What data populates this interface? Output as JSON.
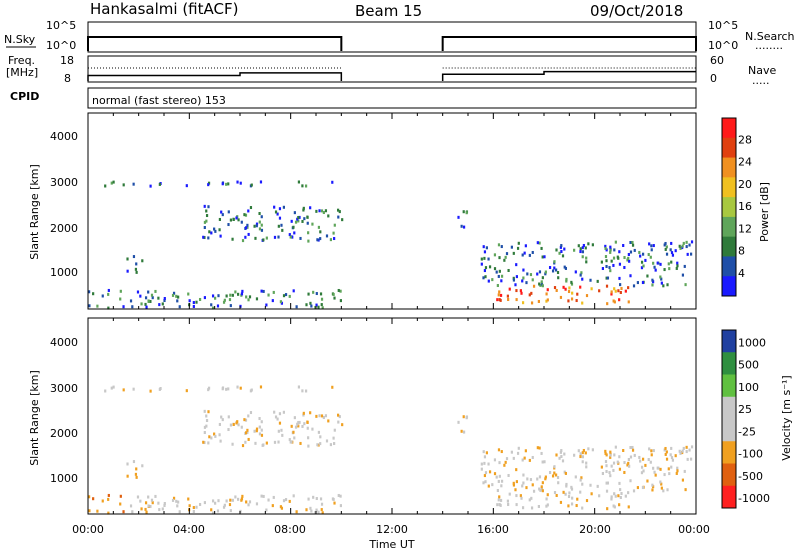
{
  "header": {
    "title_left": "Hankasalmi (fitACF)",
    "title_center": "Beam 15",
    "title_right": "09/Oct/2018"
  },
  "nsky_panel": {
    "left_label": "N.Sky",
    "left_ticks": [
      "10^5",
      "10^0"
    ],
    "right_ticks": [
      "10^5",
      "10^0"
    ],
    "right_label": "N.Search",
    "right_legend": "........"
  },
  "freq_panel": {
    "left_label_line1": "Freq.",
    "left_label_line2": "[MHz]",
    "left_ticks": [
      "18",
      "8"
    ],
    "right_ticks": [
      "60",
      "0"
    ],
    "right_label": "Nave",
    "right_legend": "....."
  },
  "cpid_panel": {
    "left_label": "CPID",
    "program": "normal (fast stereo) 153"
  },
  "x_axis": {
    "ticks": [
      "00:00",
      "04:00",
      "08:00",
      "12:00",
      "16:00",
      "20:00",
      "00:00"
    ],
    "label": "Time UT"
  },
  "power_panel": {
    "ylabel": "Slant Range [km]",
    "y_ticks": [
      "4000",
      "3000",
      "2000",
      "1000"
    ],
    "colorbar_label": "Power [dB]",
    "colorbar_ticks": [
      "28",
      "24",
      "20",
      "16",
      "12",
      "8",
      "4"
    ]
  },
  "velocity_panel": {
    "ylabel": "Slant Range [km]",
    "y_ticks": [
      "4000",
      "3000",
      "2000",
      "1000"
    ],
    "colorbar_label": "Velocity [m s⁻¹]",
    "colorbar_ticks": [
      "1000",
      "500",
      "100",
      "25",
      "-25",
      "-100",
      "-500",
      "-1000"
    ]
  },
  "chart_data": {
    "type": "heatmap",
    "x_range_hours": [
      0,
      24
    ],
    "slant_range_km": [
      180,
      4600
    ],
    "data_gap_hours": [
      10,
      14
    ],
    "power_colorbar_db": [
      0,
      32
    ],
    "velocity_colorbar_ms": [
      -1000,
      1000
    ],
    "scatter_regions": [
      {
        "name": "near-range",
        "t": [
          0,
          10
        ],
        "r": [
          200,
          600
        ]
      },
      {
        "name": "band-2000",
        "t": [
          4.5,
          10
        ],
        "r": [
          1700,
          2500
        ]
      },
      {
        "name": "band-1200",
        "t": [
          1.5,
          2.2
        ],
        "r": [
          1000,
          1400
        ]
      },
      {
        "name": "echo-3000",
        "t": [
          0.5,
          10
        ],
        "r": [
          2950,
          3050
        ]
      },
      {
        "name": "afternoon-strong",
        "t": [
          16,
          21.5
        ],
        "r": [
          300,
          700
        ]
      },
      {
        "name": "afternoon-mid",
        "t": [
          15.5,
          23.8
        ],
        "r": [
          700,
          1700
        ]
      },
      {
        "name": "afternoon-2000",
        "t": [
          14.5,
          15
        ],
        "r": [
          1900,
          2400
        ]
      }
    ],
    "nsky_series": {
      "t": [
        0,
        10,
        14,
        24
      ],
      "level": [
        "high",
        "high",
        "high",
        "high"
      ]
    },
    "freq_series": {
      "t": [
        0,
        6,
        10,
        14,
        18,
        24
      ],
      "mhz": [
        10.5,
        11.5,
        10.5,
        11.0,
        12.0,
        12.0
      ]
    }
  }
}
